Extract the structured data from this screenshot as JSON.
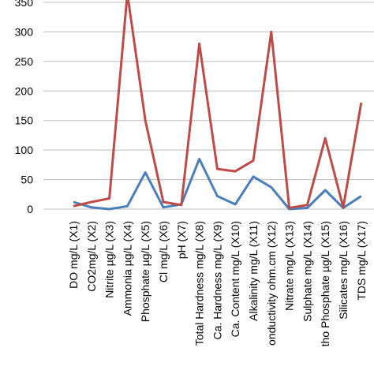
{
  "chart_data": {
    "type": "line",
    "categories": [
      "DO mg/L (X1)",
      "CO2mg/L (X2)",
      "Nitrite µg/L (X3)",
      "Ammonia µg/L (X4)",
      "Phosphate µg/L (X5)",
      "Cl mg/L (X6)",
      "pH (X7)",
      "Total  Hardness mg/L (X8)",
      "Ca. Hardness mg/L (X9)",
      "Ca. Content mg/L (X10)",
      "Alkalinity mg/L (X11)",
      "onductivity ohm.cm (X12)",
      "Nitrate mg/L (X13)",
      "Sulphate mg/L (X14)",
      "tho Phosphate µg/L (X15)",
      "Silicates mg/L (X16)",
      "TDS mg/L (X17)"
    ],
    "series": [
      {
        "color": "#4a7ebb",
        "values": [
          12,
          3,
          0,
          5,
          62,
          3,
          8,
          85,
          22,
          8,
          55,
          37,
          0,
          2,
          32,
          2,
          22
        ]
      },
      {
        "color": "#be4b48",
        "values": [
          5,
          12,
          18,
          365,
          150,
          12,
          7,
          280,
          68,
          64,
          82,
          300,
          2,
          7,
          120,
          3,
          180
        ]
      }
    ],
    "ylim": [
      0,
      350
    ],
    "yticks": [
      0,
      50,
      100,
      150,
      200,
      250,
      300,
      350
    ],
    "grid": true
  }
}
